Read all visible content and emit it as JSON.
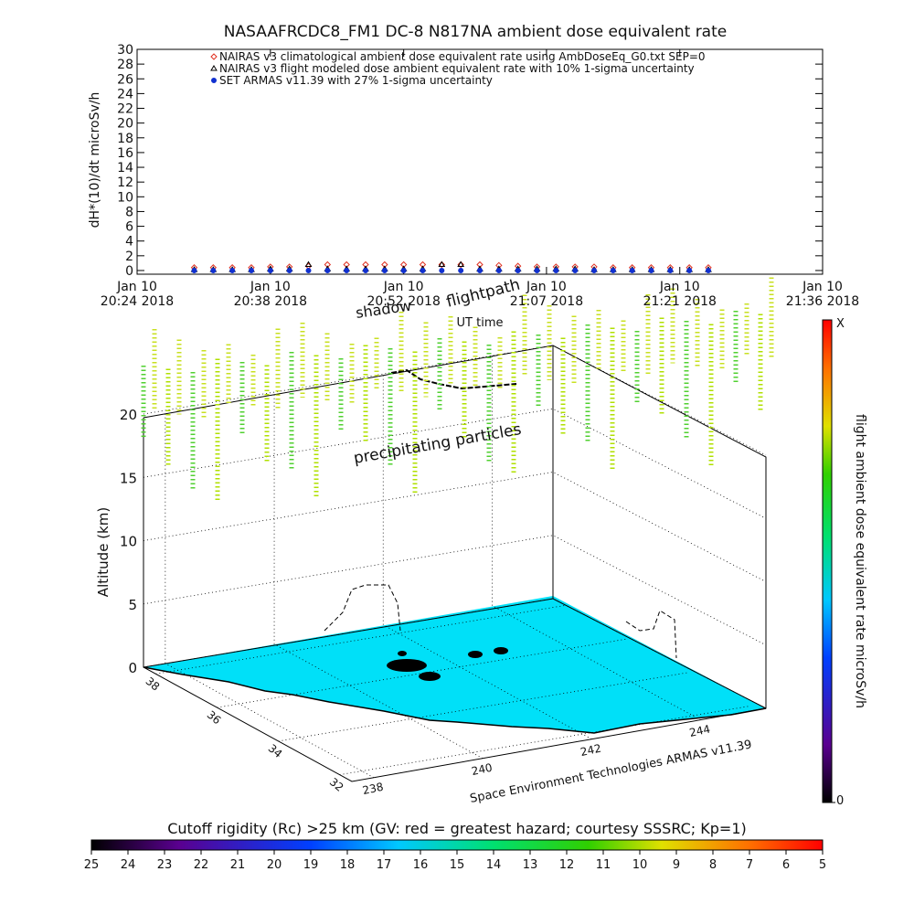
{
  "chart_data": [
    {
      "type": "scatter",
      "title": "NASAAFRCDC8_FM1 DC-8   N817NA ambient dose equivalent rate",
      "y_label": "dH*(10)/dt microSv/h",
      "x_label": "UT time",
      "ylim": [
        -0.5,
        30
      ],
      "yticks": [
        0,
        2,
        4,
        6,
        8,
        10,
        12,
        14,
        16,
        18,
        20,
        22,
        24,
        26,
        28,
        30
      ],
      "xlim": [
        "2018-01-10T20:24",
        "2018-01-10T21:36"
      ],
      "xticks": [
        {
          "value": "2018-01-10T20:24",
          "label": "Jan 10\n20:24 2018"
        },
        {
          "value": "2018-01-10T20:38",
          "label": "Jan 10\n20:38 2018"
        },
        {
          "value": "2018-01-10T20:52",
          "label": "Jan 10\n20:52 2018"
        },
        {
          "value": "2018-01-10T21:07",
          "label": "Jan 10\n21:07 2018"
        },
        {
          "value": "2018-01-10T21:21",
          "label": "Jan 10\n21:21 2018"
        },
        {
          "value": "2018-01-10T21:36",
          "label": "Jan 10\n21:36 2018"
        }
      ],
      "x": [
        "2018-01-10T20:30",
        "2018-01-10T20:32",
        "2018-01-10T20:34",
        "2018-01-10T20:36",
        "2018-01-10T20:38",
        "2018-01-10T20:40",
        "2018-01-10T20:42",
        "2018-01-10T20:44",
        "2018-01-10T20:46",
        "2018-01-10T20:48",
        "2018-01-10T20:50",
        "2018-01-10T20:52",
        "2018-01-10T20:54",
        "2018-01-10T20:56",
        "2018-01-10T20:58",
        "2018-01-10T21:00",
        "2018-01-10T21:02",
        "2018-01-10T21:04",
        "2018-01-10T21:06",
        "2018-01-10T21:08",
        "2018-01-10T21:10",
        "2018-01-10T21:12",
        "2018-01-10T21:14",
        "2018-01-10T21:16",
        "2018-01-10T21:18",
        "2018-01-10T21:20",
        "2018-01-10T21:22",
        "2018-01-10T21:24"
      ],
      "series": [
        {
          "name": "NAIRAS v3 climatological ambient dose equivalent rate using AmbDoseEq_G0.txt SEP=0",
          "color": "#e03020",
          "marker": "diamond",
          "values": [
            0.4,
            0.4,
            0.4,
            0.4,
            0.5,
            0.5,
            0.6,
            0.8,
            0.8,
            0.8,
            0.8,
            0.8,
            0.8,
            0.8,
            0.8,
            0.8,
            0.7,
            0.6,
            0.5,
            0.5,
            0.5,
            0.5,
            0.4,
            0.4,
            0.4,
            0.4,
            0.4,
            0.4
          ]
        },
        {
          "name": "NAIRAS v3 flight modeled dose ambient equivalent rate with 10% 1-sigma uncertainty",
          "color": "#000000",
          "marker": "triangle",
          "values": [
            0.1,
            0.1,
            0.1,
            0.1,
            0.2,
            0.2,
            0.8,
            0.2,
            0.2,
            0.2,
            0.2,
            0.2,
            0.2,
            0.8,
            0.8,
            0.2,
            0.2,
            0.2,
            0.2,
            0.2,
            0.2,
            0.1,
            0.1,
            0.1,
            0.1,
            0.1,
            0.1,
            0.1
          ]
        },
        {
          "name": "SET ARMAS v11.39 with 27% 1-sigma uncertainty",
          "color": "#1030d0",
          "marker": "dot",
          "values": [
            0,
            0,
            0,
            0,
            0,
            0,
            0,
            0,
            0,
            0,
            0,
            0,
            0,
            0,
            0,
            0,
            0,
            0,
            0,
            0,
            0,
            0,
            0,
            0,
            0,
            0,
            0,
            0
          ]
        }
      ]
    },
    {
      "type": "surface3d",
      "z_label": "Altitude (km)",
      "zlim": [
        0,
        20
      ],
      "zticks": [
        0,
        5,
        10,
        15,
        20
      ],
      "ylim": [
        38.4,
        31.6
      ],
      "yticks": [
        38,
        36,
        34,
        32
      ],
      "xlim": [
        237.6,
        245.2
      ],
      "xticks": [
        238,
        240,
        242,
        244
      ],
      "credit": "Space Environment Technologies ARMAS v11.39",
      "annotations": [
        "shadow",
        "flightpath",
        "precipitating particles"
      ]
    },
    {
      "type": "colorbar",
      "title": "flight ambient dose equivalent rate microSv/h",
      "top_label": "X",
      "ticks": [
        0
      ]
    },
    {
      "type": "colorbar",
      "title": "Cutoff rigidity (Rc) >25 km (GV: red = greatest hazard; courtesy SSSRC; Kp=1)",
      "xlim": [
        25,
        5
      ],
      "xticks": [
        25,
        24,
        23,
        22,
        21,
        20,
        19,
        18,
        17,
        16,
        15,
        14,
        13,
        12,
        11,
        10,
        9,
        8,
        7,
        6,
        5
      ]
    }
  ]
}
